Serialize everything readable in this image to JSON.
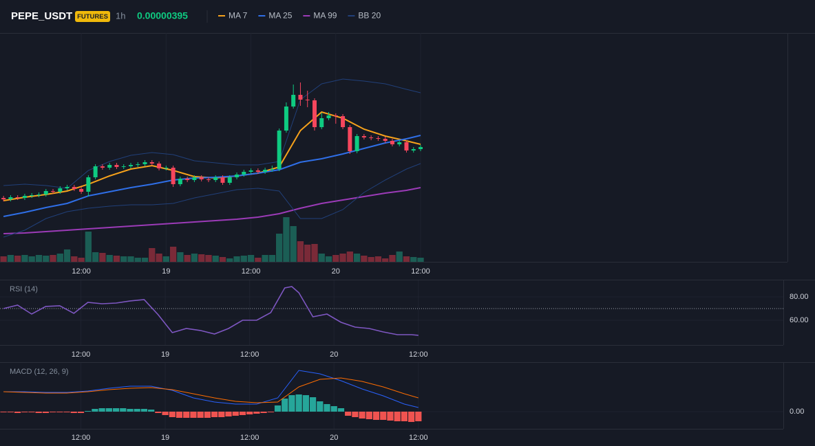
{
  "header": {
    "symbol": "PEPE_USDT",
    "badge": "FUTURES",
    "interval": "1h",
    "price": "0.00000395"
  },
  "chart_data": [
    {
      "type": "candlestick",
      "xlim": [
        -0.5,
        110.9
      ],
      "xticks": [
        {
          "value": 11,
          "label": "12:00"
        },
        {
          "value": 23,
          "label": "19"
        },
        {
          "value": 35,
          "label": "12:00"
        },
        {
          "value": 47,
          "label": "20"
        },
        {
          "value": 59,
          "label": "12:00"
        }
      ],
      "ylim": [
        3.282e-06,
        4.614e-06
      ],
      "up_color": "#0ecb81",
      "down_color": "#f6465d",
      "volume_up_color": "#1b5e55",
      "volume_down_color": "#7a2a38",
      "open": [
        3.654e-06,
        3.646e-06,
        3.658e-06,
        3.654e-06,
        3.666e-06,
        3.67e-06,
        3.674e-06,
        3.694e-06,
        3.69e-06,
        3.71e-06,
        3.718e-06,
        3.706e-06,
        3.69e-06,
        3.774e-06,
        3.838e-06,
        3.83e-06,
        3.846e-06,
        3.834e-06,
        3.838e-06,
        3.846e-06,
        3.85e-06,
        3.862e-06,
        3.854e-06,
        3.826e-06,
        3.83e-06,
        3.734e-06,
        3.766e-06,
        3.758e-06,
        3.774e-06,
        3.762e-06,
        3.758e-06,
        3.774e-06,
        3.742e-06,
        3.774e-06,
        3.79e-06,
        3.806e-06,
        3.814e-06,
        3.806e-06,
        3.818e-06,
        3.822e-06,
        4.046e-06,
        4.186e-06,
        4.254e-06,
        4.226e-06,
        4.222e-06,
        4.066e-06,
        4.118e-06,
        4.134e-06,
        4.13e-06,
        4.066e-06,
        3.926e-06,
        4.014e-06,
        4.006e-06,
        4.002e-06,
        3.998e-06,
        3.986e-06,
        3.966e-06,
        3.978e-06,
        3.93e-06,
        3.938e-06
      ],
      "high": [
        3.666e-06,
        3.67e-06,
        3.67e-06,
        3.678e-06,
        3.682e-06,
        3.686e-06,
        3.706e-06,
        3.706e-06,
        3.722e-06,
        3.73e-06,
        3.73e-06,
        3.718e-06,
        3.786e-06,
        3.85e-06,
        3.85e-06,
        3.858e-06,
        3.858e-06,
        3.85e-06,
        3.858e-06,
        3.862e-06,
        3.874e-06,
        3.874e-06,
        3.866e-06,
        3.842e-06,
        3.842e-06,
        3.778e-06,
        3.778e-06,
        3.786e-06,
        3.786e-06,
        3.774e-06,
        3.786e-06,
        3.786e-06,
        3.786e-06,
        3.802e-06,
        3.818e-06,
        3.826e-06,
        3.826e-06,
        3.83e-06,
        3.842e-06,
        4.058e-06,
        4.21e-06,
        4.314e-06,
        4.326e-06,
        4.278e-06,
        4.234e-06,
        4.15e-06,
        4.154e-06,
        4.146e-06,
        4.142e-06,
        4.078e-06,
        4.026e-06,
        4.026e-06,
        4.018e-06,
        4.014e-06,
        4.01e-06,
        3.998e-06,
        3.99e-06,
        3.99e-06,
        3.95e-06,
        3.962e-06
      ],
      "low": [
        3.634e-06,
        3.634e-06,
        3.642e-06,
        3.642e-06,
        3.654e-06,
        3.658e-06,
        3.662e-06,
        3.678e-06,
        3.678e-06,
        3.698e-06,
        3.694e-06,
        3.678e-06,
        3.662e-06,
        3.762e-06,
        3.818e-06,
        3.818e-06,
        3.822e-06,
        3.822e-06,
        3.826e-06,
        3.834e-06,
        3.838e-06,
        3.842e-06,
        3.814e-06,
        3.814e-06,
        3.718e-06,
        3.722e-06,
        3.746e-06,
        3.746e-06,
        3.75e-06,
        3.746e-06,
        3.746e-06,
        3.73e-06,
        3.73e-06,
        3.762e-06,
        3.778e-06,
        3.794e-06,
        3.794e-06,
        3.794e-06,
        3.806e-06,
        3.81e-06,
        4.034e-06,
        4.174e-06,
        4.19e-06,
        4.182e-06,
        4.046e-06,
        4.054e-06,
        4.106e-06,
        4.086e-06,
        4.054e-06,
        3.91e-06,
        3.914e-06,
        3.994e-06,
        3.99e-06,
        3.986e-06,
        3.974e-06,
        3.954e-06,
        3.954e-06,
        3.918e-06,
        3.918e-06,
        3.926e-06
      ],
      "close": [
        3.646e-06,
        3.658e-06,
        3.654e-06,
        3.666e-06,
        3.67e-06,
        3.674e-06,
        3.694e-06,
        3.69e-06,
        3.71e-06,
        3.718e-06,
        3.706e-06,
        3.69e-06,
        3.774e-06,
        3.838e-06,
        3.83e-06,
        3.846e-06,
        3.834e-06,
        3.838e-06,
        3.846e-06,
        3.85e-06,
        3.862e-06,
        3.854e-06,
        3.826e-06,
        3.83e-06,
        3.734e-06,
        3.766e-06,
        3.758e-06,
        3.774e-06,
        3.762e-06,
        3.758e-06,
        3.774e-06,
        3.742e-06,
        3.774e-06,
        3.79e-06,
        3.806e-06,
        3.814e-06,
        3.806e-06,
        3.818e-06,
        3.822e-06,
        4.046e-06,
        4.186e-06,
        4.254e-06,
        4.226e-06,
        4.222e-06,
        4.066e-06,
        4.118e-06,
        4.134e-06,
        4.13e-06,
        4.066e-06,
        3.926e-06,
        4.014e-06,
        4.006e-06,
        4.002e-06,
        3.998e-06,
        3.986e-06,
        3.966e-06,
        3.978e-06,
        3.93e-06,
        3.938e-06,
        3.95e-06
      ],
      "volume_ylim": [
        0,
        100
      ],
      "volume": [
        8,
        10,
        9,
        10,
        8,
        10,
        9,
        10,
        12,
        18,
        8,
        6,
        44,
        14,
        13,
        10,
        9,
        8,
        8,
        6,
        6,
        20,
        12,
        8,
        22,
        14,
        10,
        12,
        11,
        10,
        9,
        7,
        5,
        8,
        9,
        10,
        6,
        10,
        10,
        41,
        65,
        52,
        30,
        25,
        26,
        12,
        8,
        10,
        12,
        15,
        12,
        9,
        7,
        8,
        5,
        10,
        15,
        8,
        7,
        6
      ],
      "overlays": {
        "x": [
          0,
          3,
          6,
          9,
          12,
          15,
          18,
          21,
          24,
          27,
          30,
          33,
          36,
          39,
          42,
          45,
          48,
          51,
          54,
          57,
          59
        ],
        "series": [
          {
            "name": "MA 7",
            "color": "#f7a21b",
            "width": 2,
            "values": [
              3.638e-06,
              3.658e-06,
              3.674e-06,
              3.694e-06,
              3.734e-06,
              3.782e-06,
              3.822e-06,
              3.842e-06,
              3.814e-06,
              3.778e-06,
              3.77e-06,
              3.782e-06,
              3.798e-06,
              3.834e-06,
              4.046e-06,
              4.154e-06,
              4.118e-06,
              4.054e-06,
              4.014e-06,
              3.986e-06,
              3.966e-06
            ]
          },
          {
            "name": "MA 25",
            "color": "#2f6fe8",
            "width": 2,
            "values": [
              3.546e-06,
              3.57e-06,
              3.598e-06,
              3.622e-06,
              3.666e-06,
              3.69e-06,
              3.714e-06,
              3.734e-06,
              3.758e-06,
              3.77e-06,
              3.774e-06,
              3.782e-06,
              3.798e-06,
              3.818e-06,
              3.862e-06,
              3.882e-06,
              3.91e-06,
              3.942e-06,
              3.974e-06,
              3.998e-06,
              4.018e-06
            ]
          },
          {
            "name": "MA 99",
            "color": "#9c3bb8",
            "width": 2,
            "values": [
              3.446e-06,
              3.45e-06,
              3.458e-06,
              3.466e-06,
              3.474e-06,
              3.482e-06,
              3.49e-06,
              3.498e-06,
              3.506e-06,
              3.514e-06,
              3.522e-06,
              3.53e-06,
              3.542e-06,
              3.562e-06,
              3.594e-06,
              3.622e-06,
              3.642e-06,
              3.662e-06,
              3.682e-06,
              3.698e-06,
              3.714e-06
            ]
          },
          {
            "name": "BB 20",
            "color": "#21407a",
            "width": 1,
            "values": [
              3.726e-06,
              3.734e-06,
              3.726e-06,
              3.71e-06,
              3.814e-06,
              3.866e-06,
              3.902e-06,
              3.918e-06,
              3.906e-06,
              3.87e-06,
              3.858e-06,
              3.846e-06,
              3.846e-06,
              3.866e-06,
              4.226e-06,
              4.318e-06,
              4.346e-06,
              4.334e-06,
              4.318e-06,
              4.286e-06,
              4.266e-06
            ],
            "lower": [
              3.426e-06,
              3.466e-06,
              3.534e-06,
              3.574e-06,
              3.594e-06,
              3.606e-06,
              3.614e-06,
              3.614e-06,
              3.622e-06,
              3.654e-06,
              3.678e-06,
              3.702e-06,
              3.71e-06,
              3.694e-06,
              3.534e-06,
              3.534e-06,
              3.586e-06,
              3.686e-06,
              3.758e-06,
              3.822e-06,
              3.854e-06
            ]
          }
        ]
      }
    },
    {
      "type": "line",
      "title": "RSI (14)",
      "color": "#7e57c2",
      "xlim": [
        -0.5,
        110.9
      ],
      "xticks": [
        {
          "value": 11,
          "label": "12:00"
        },
        {
          "value": 23,
          "label": "19"
        },
        {
          "value": 35,
          "label": "12:00"
        },
        {
          "value": 47,
          "label": "20"
        },
        {
          "value": 59,
          "label": "12:00"
        }
      ],
      "ylim": [
        38.8,
        94.1
      ],
      "yticks": [
        {
          "value": 80,
          "label": "80.00"
        },
        {
          "value": 60,
          "label": "60.00"
        }
      ],
      "level": 70,
      "x": [
        0,
        2,
        4,
        6,
        8,
        10,
        12,
        14,
        16,
        18,
        20,
        22,
        24,
        26,
        28,
        30,
        32,
        34,
        36,
        38,
        40,
        41,
        42,
        44,
        46,
        48,
        50,
        52,
        54,
        56,
        58,
        59
      ],
      "values": [
        70.0,
        72.9,
        65.3,
        71.8,
        72.4,
        65.9,
        75.3,
        74.1,
        74.7,
        76.5,
        77.6,
        64.7,
        49.4,
        52.9,
        51.2,
        48.2,
        52.9,
        60.0,
        60.0,
        66.5,
        87.6,
        88.8,
        83.5,
        62.9,
        65.3,
        58.2,
        54.1,
        52.9,
        50.0,
        47.6,
        47.6,
        47.1
      ]
    },
    {
      "type": "macd",
      "title": "MACD (12, 26, 9)",
      "xlim": [
        -0.5,
        110.9
      ],
      "xticks": [
        {
          "value": 11,
          "label": "12:00"
        },
        {
          "value": 23,
          "label": "19"
        },
        {
          "value": 35,
          "label": "12:00"
        },
        {
          "value": 47,
          "label": "20"
        },
        {
          "value": 59,
          "label": "12:00"
        }
      ],
      "ylim": [
        -2.5e-08,
        7.1e-08
      ],
      "yticks": [
        {
          "value": 0,
          "label": "0.00"
        }
      ],
      "x": [
        0,
        3,
        6,
        9,
        12,
        15,
        18,
        21,
        24,
        27,
        30,
        33,
        36,
        39,
        42,
        45,
        48,
        51,
        54,
        57,
        59
      ],
      "series": [
        {
          "color": "#2962ff",
          "values": [
            2.9e-08,
            2.9e-08,
            2.8e-08,
            2.8e-08,
            3e-08,
            3.4e-08,
            3.7e-08,
            3.7e-08,
            3.1e-08,
            2e-08,
            1.4e-08,
            1.1e-08,
            1.1e-08,
            2e-08,
            6e-08,
            5.5e-08,
            4.5e-08,
            3.3e-08,
            2.3e-08,
            1.1e-08,
            6e-09
          ]
        },
        {
          "color": "#ff6d00",
          "values": [
            2.9e-08,
            2.8e-08,
            2.7e-08,
            2.7e-08,
            2.9e-08,
            3.2e-08,
            3.4e-08,
            3.5e-08,
            3.2e-08,
            2.6e-08,
            2e-08,
            1.5e-08,
            1.3e-08,
            1.4e-08,
            3.6e-08,
            4.7e-08,
            4.9e-08,
            4.4e-08,
            3.6e-08,
            2.6e-08,
            2e-08
          ]
        }
      ],
      "histogram_up_color": "#26a69a",
      "histogram_down_color": "#ef5350",
      "histogram": [
        -1e-09,
        -1e-09,
        -2e-09,
        -1e-09,
        -1e-09,
        -2e-09,
        -2e-09,
        -1e-09,
        -1e-09,
        -1e-09,
        -2e-09,
        -2e-09,
        1e-09,
        4e-09,
        5e-09,
        5e-09,
        5e-09,
        5e-09,
        4e-09,
        4e-09,
        4e-09,
        3e-09,
        -2e-09,
        -5e-09,
        -8e-09,
        -9e-09,
        -9e-09,
        -9e-09,
        -9e-09,
        -9e-09,
        -8e-09,
        -8e-09,
        -7e-09,
        -6e-09,
        -5e-09,
        -4e-09,
        -3e-09,
        -2e-09,
        -1e-09,
        9e-09,
        1.9e-08,
        2.4e-08,
        2.5e-08,
        2.4e-08,
        2.1e-08,
        1.5e-08,
        1.1e-08,
        8e-09,
        5e-09,
        -6e-09,
        -8e-09,
        -1e-08,
        -1.1e-08,
        -1.2e-08,
        -1.2e-08,
        -1.3e-08,
        -1.4e-08,
        -1.4e-08,
        -1.5e-08,
        -1.4e-08
      ]
    }
  ]
}
